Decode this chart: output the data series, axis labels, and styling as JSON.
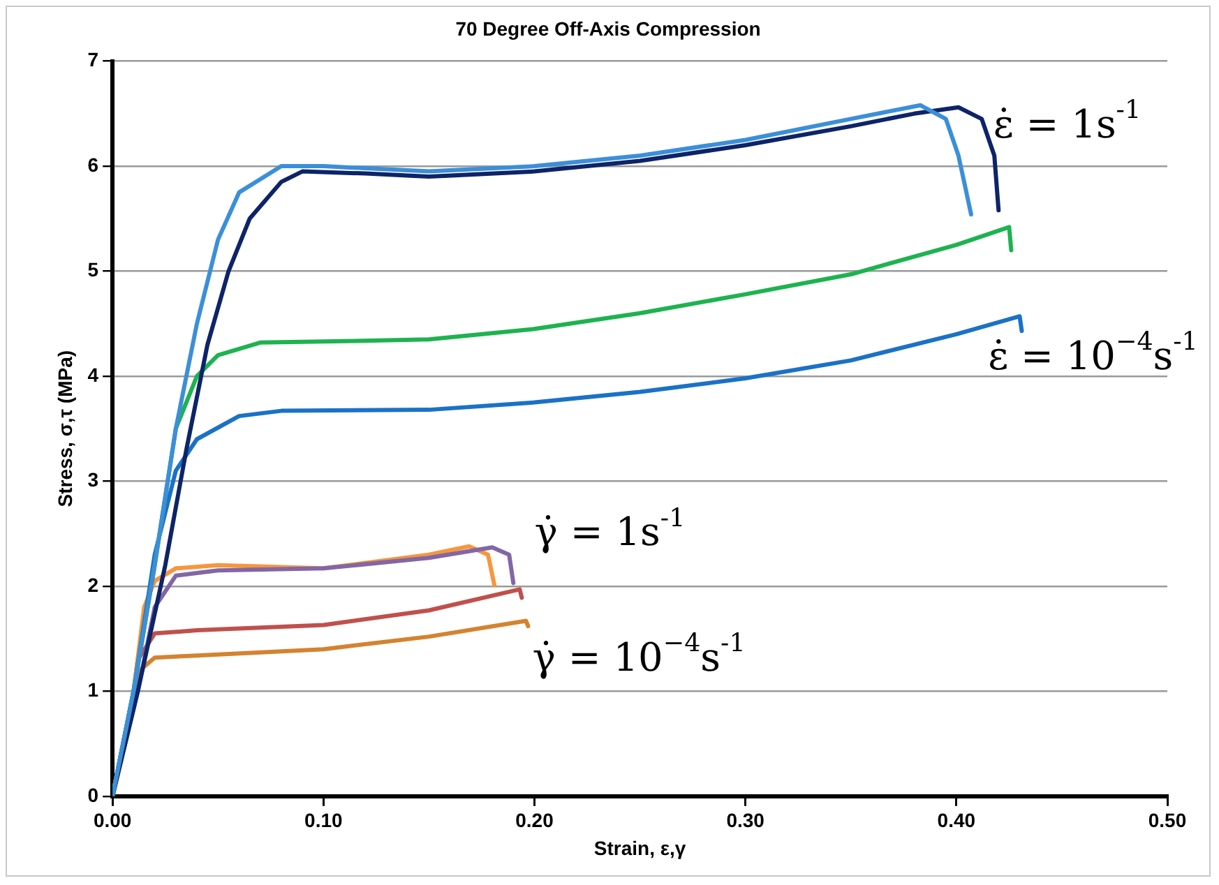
{
  "chart_data": {
    "type": "line",
    "title": "70 Degree Off-Axis Compression",
    "xlabel": "Strain, ε,γ",
    "ylabel": "Stress, σ,τ (MPa)",
    "xlim": [
      0,
      0.5
    ],
    "xticks": [
      {
        "value": 0,
        "label": "0.00"
      },
      {
        "value": 0.1,
        "label": "0.10"
      },
      {
        "value": 0.2,
        "label": "0.20"
      },
      {
        "value": 0.3,
        "label": "0.30"
      },
      {
        "value": 0.4,
        "label": "0.40"
      },
      {
        "value": 0.5,
        "label": "0.50"
      }
    ],
    "ylim": [
      0,
      7
    ],
    "yticks": [
      0,
      1,
      2,
      3,
      4,
      5,
      6,
      7
    ],
    "grid": "y",
    "legend": false,
    "marker": "none",
    "line_style": "solid",
    "series": [
      {
        "color": "#3b8fd9",
        "x": [
          0,
          0.01,
          0.02,
          0.03,
          0.04,
          0.05,
          0.06,
          0.08,
          0.1,
          0.15,
          0.2,
          0.25,
          0.3,
          0.35,
          0.383,
          0.395,
          0.401,
          0.407
        ],
        "values": [
          0,
          1.0,
          2.2,
          3.5,
          4.5,
          5.3,
          5.75,
          6.0,
          6.0,
          5.95,
          6.0,
          6.1,
          6.25,
          6.45,
          6.58,
          6.45,
          6.1,
          5.54
        ]
      },
      {
        "color": "#0d2468",
        "x": [
          0,
          0.012,
          0.025,
          0.035,
          0.045,
          0.055,
          0.065,
          0.08,
          0.09,
          0.12,
          0.15,
          0.2,
          0.25,
          0.3,
          0.35,
          0.38,
          0.401,
          0.412,
          0.418,
          0.42
        ],
        "values": [
          0,
          1.0,
          2.2,
          3.3,
          4.3,
          5.0,
          5.5,
          5.85,
          5.95,
          5.93,
          5.9,
          5.95,
          6.05,
          6.2,
          6.38,
          6.5,
          6.56,
          6.45,
          6.1,
          5.58
        ]
      },
      {
        "color": "#1db34f",
        "x": [
          0,
          0.01,
          0.02,
          0.03,
          0.04,
          0.05,
          0.07,
          0.1,
          0.15,
          0.2,
          0.25,
          0.3,
          0.35,
          0.4,
          0.425,
          0.426
        ],
        "values": [
          0,
          1.0,
          2.2,
          3.5,
          4.0,
          4.2,
          4.32,
          4.33,
          4.35,
          4.45,
          4.6,
          4.78,
          4.97,
          5.25,
          5.42,
          5.2
        ]
      },
      {
        "color": "#1a72c6",
        "x": [
          0,
          0.01,
          0.02,
          0.03,
          0.04,
          0.06,
          0.08,
          0.15,
          0.2,
          0.25,
          0.3,
          0.35,
          0.4,
          0.43,
          0.431
        ],
        "values": [
          0,
          1.0,
          2.3,
          3.1,
          3.4,
          3.62,
          3.67,
          3.68,
          3.75,
          3.85,
          3.98,
          4.15,
          4.4,
          4.57,
          4.43
        ]
      },
      {
        "color": "#8266a6",
        "x": [
          0,
          0.012,
          0.02,
          0.03,
          0.05,
          0.1,
          0.15,
          0.18,
          0.188,
          0.19
        ],
        "values": [
          0,
          1.0,
          1.8,
          2.1,
          2.15,
          2.17,
          2.27,
          2.37,
          2.3,
          2.03
        ]
      },
      {
        "color": "#f7963e",
        "x": [
          0,
          0.01,
          0.015,
          0.02,
          0.03,
          0.05,
          0.1,
          0.15,
          0.169,
          0.178,
          0.181
        ],
        "values": [
          0,
          1.0,
          1.8,
          2.05,
          2.17,
          2.2,
          2.17,
          2.3,
          2.38,
          2.3,
          2.01
        ]
      },
      {
        "color": "#c0504d",
        "x": [
          0,
          0.01,
          0.012,
          0.02,
          0.04,
          0.1,
          0.15,
          0.193,
          0.194
        ],
        "values": [
          0,
          1.0,
          1.3,
          1.55,
          1.58,
          1.63,
          1.77,
          1.97,
          1.89
        ]
      },
      {
        "color": "#d4832f",
        "x": [
          0,
          0.01,
          0.013,
          0.02,
          0.04,
          0.1,
          0.15,
          0.196,
          0.197
        ],
        "values": [
          0,
          1.0,
          1.2,
          1.32,
          1.34,
          1.4,
          1.52,
          1.67,
          1.62
        ]
      }
    ],
    "annotations": [
      "ε̇ = 1s$^{-1}$",
      "ε̇ = 10$^{−4}$s$^{-1}$",
      "γ̇ = 1s$^{-1}$",
      "γ̇ = 10$^{−4}$s$^{-1}$"
    ]
  }
}
